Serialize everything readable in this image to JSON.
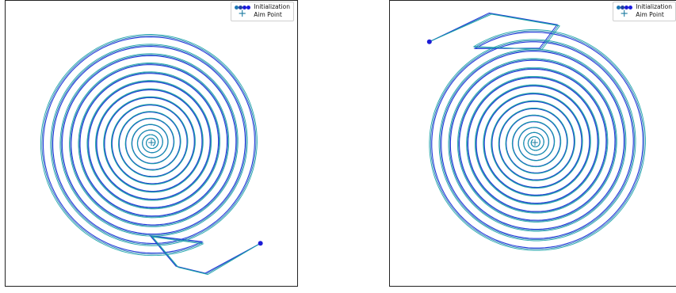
{
  "colors": {
    "init_dots": [
      "#1f77b4",
      "#1f3fa0",
      "#1c1cd6",
      "#1a1ae0"
    ],
    "aim": "#1a7aa0",
    "spiral_a": "#1a2fd8",
    "spiral_b": "#1f77b4",
    "spiral_c": "#17a2a8"
  },
  "chart_data": [
    {
      "type": "line",
      "title": "",
      "xlabel": "",
      "ylabel": "",
      "grid": false,
      "legend_placement": "top-right",
      "legend": {
        "initialization": "Initialization",
        "aim_point": "Aim Point"
      },
      "spiral": {
        "turns": 15,
        "outer_radius": 1.0,
        "direction": "clockwise-inward",
        "center": [
          0,
          0
        ]
      },
      "initialization_point": [
        0.93,
        -0.86
      ],
      "aim_point": [
        0,
        0
      ]
    },
    {
      "type": "line",
      "title": "",
      "xlabel": "",
      "ylabel": "",
      "grid": false,
      "legend_placement": "top-right",
      "legend": {
        "initialization": "Initialization",
        "aim_point": "Aim Point"
      },
      "spiral": {
        "turns": 15,
        "outer_radius": 1.0,
        "direction": "clockwise-inward",
        "center": [
          0,
          0
        ]
      },
      "initialization_point": [
        -0.9,
        0.86
      ],
      "aim_point": [
        0,
        0
      ]
    }
  ]
}
